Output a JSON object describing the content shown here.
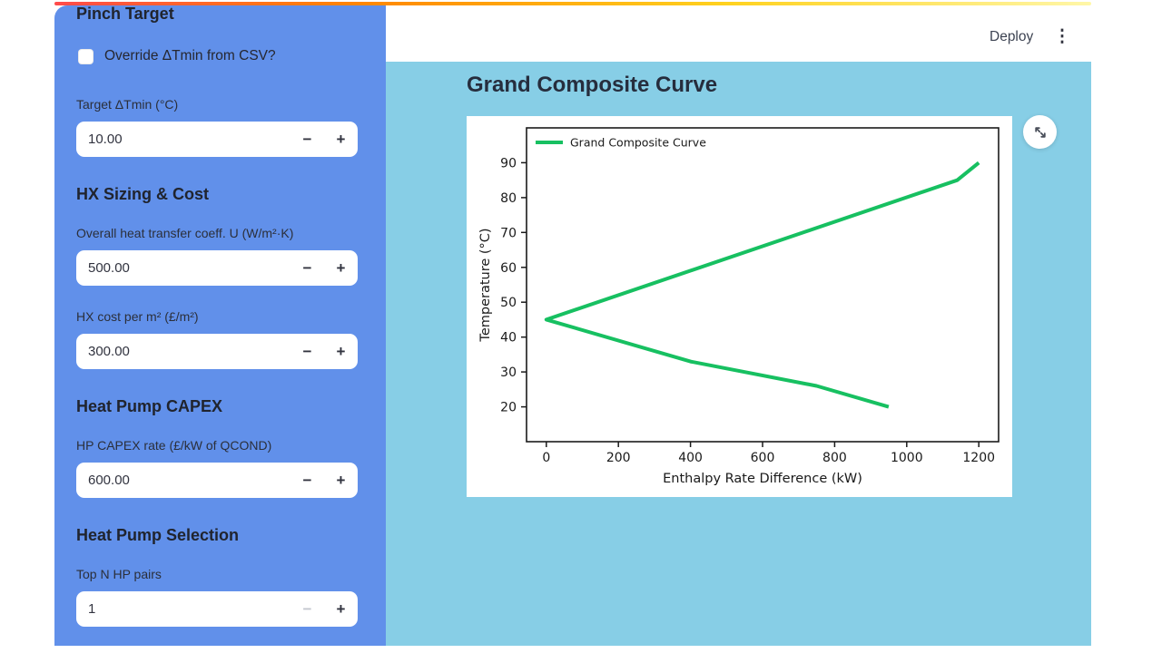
{
  "colors": {
    "sidebar_bg": "#6190ea",
    "main_bg": "#87cee6",
    "card_bg": "#ffffff",
    "curve_green": "#17c061",
    "decoration_gradient": [
      "#ff4b4b",
      "#ff8700",
      "#ffd21f",
      "#fff7a8"
    ]
  },
  "header": {
    "deploy_label": "Deploy",
    "menu_icon": "⋮"
  },
  "sidebar": {
    "headings": {
      "pinch": "Pinch Target",
      "hx": "HX Sizing & Cost",
      "capex": "Heat Pump CAPEX",
      "selection": "Heat Pump Selection"
    },
    "checkbox": {
      "label": "Override ΔTmin from CSV?",
      "checked": false
    },
    "stepper": {
      "minus": "−",
      "plus": "+"
    },
    "fields": [
      {
        "label": "Target ΔTmin (°C)",
        "value": "10.00"
      },
      {
        "label": "Overall heat transfer coeff. U (W/m²·K)",
        "value": "500.00"
      },
      {
        "label": "HX cost per m² (£/m²)",
        "value": "300.00"
      },
      {
        "label": "HP CAPEX rate (£/kW of QCOND)",
        "value": "600.00"
      },
      {
        "label": "Top N HP pairs",
        "value": "1",
        "minus_disabled": true
      }
    ]
  },
  "main": {
    "title": "Grand Composite Curve"
  },
  "chart_data": {
    "type": "line",
    "title": "Grand Composite Curve",
    "xlabel": "Enthalpy Rate Difference (kW)",
    "ylabel": "Temperature (°C)",
    "x_ticks": [
      0,
      200,
      400,
      600,
      800,
      1000,
      1200
    ],
    "y_ticks": [
      20,
      30,
      40,
      50,
      60,
      70,
      80,
      90
    ],
    "xlim": [
      -55,
      1255
    ],
    "ylim": [
      10,
      100
    ],
    "grid": false,
    "legend": [
      "Grand Composite Curve"
    ],
    "legend_position": "upper left",
    "line_color": "#17c061",
    "series": [
      {
        "name": "Grand Composite Curve",
        "points": [
          [
            1200,
            90
          ],
          [
            1140,
            85
          ],
          [
            0,
            45
          ],
          [
            400,
            33
          ],
          [
            750,
            26
          ],
          [
            950,
            20
          ]
        ]
      }
    ]
  }
}
